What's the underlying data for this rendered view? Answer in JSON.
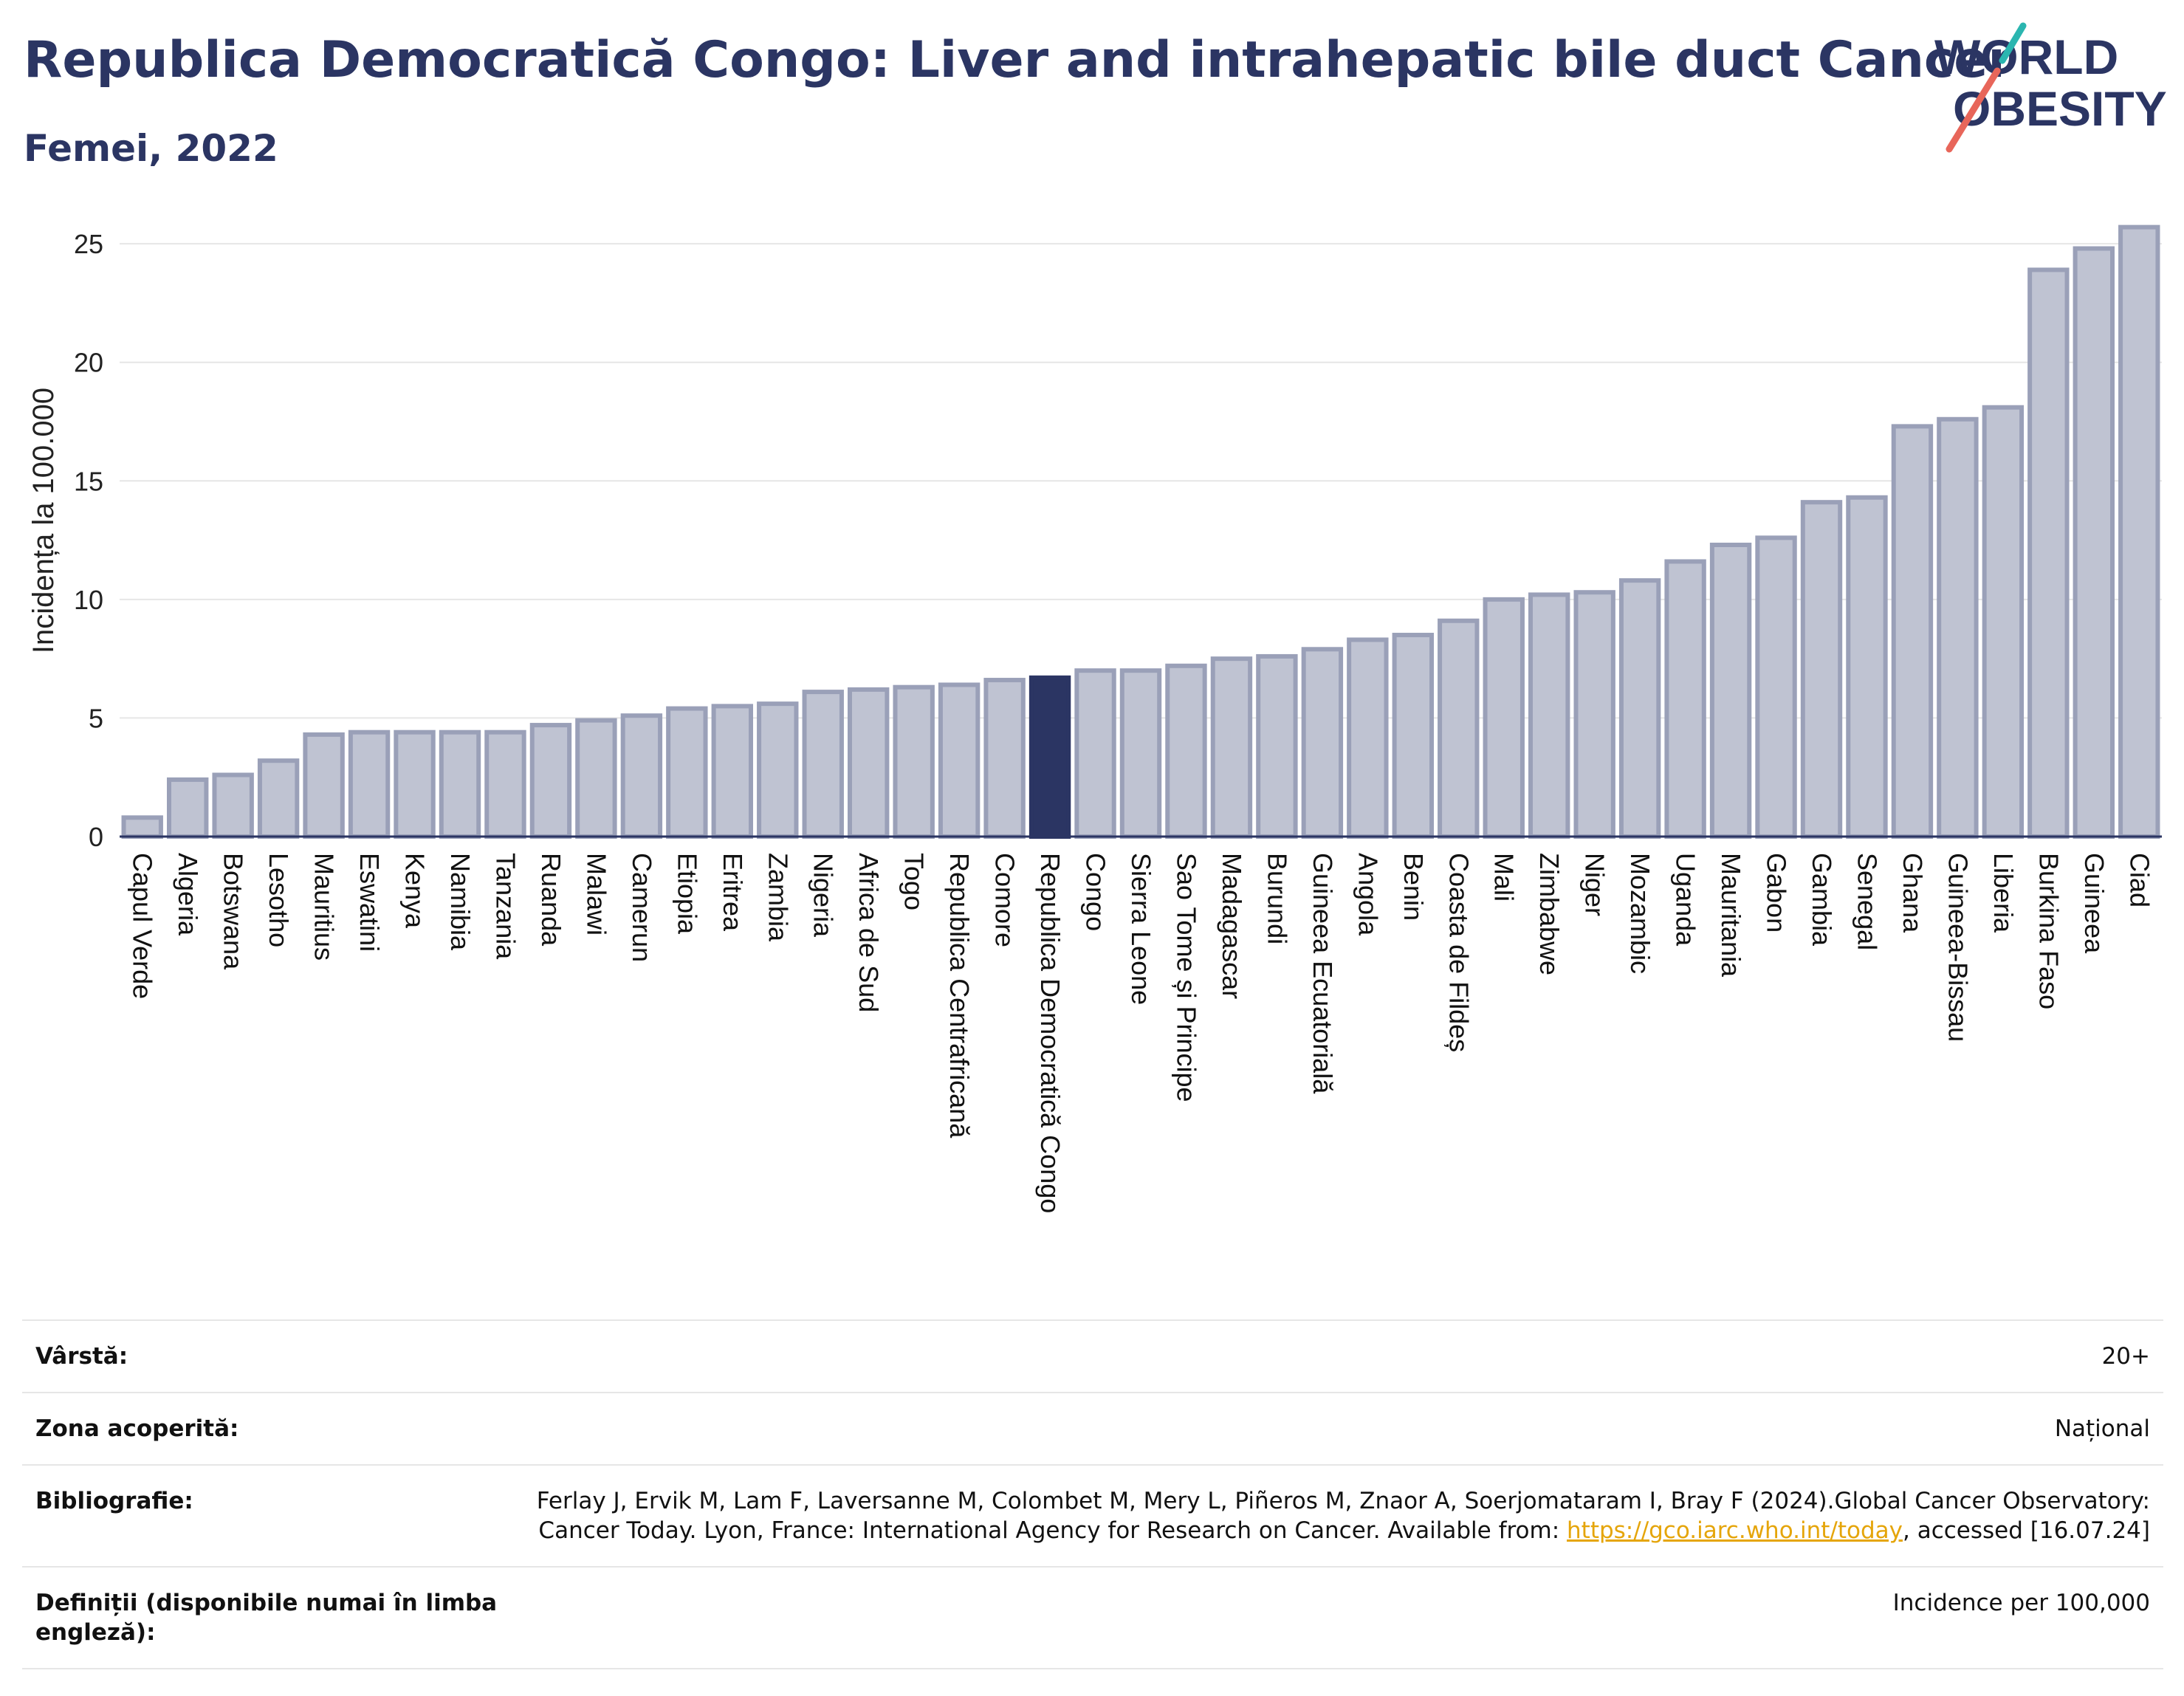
{
  "header": {
    "title": "Republica Democratică Congo: Liver and intrahepatic bile duct Cancer",
    "subtitle": "Femei, 2022",
    "logo_line1": "WORLD",
    "logo_line2": "OBESITY"
  },
  "colors": {
    "bar": "#bfc3d2",
    "bar_border": "#9aa0b8",
    "highlight": "#2b3563",
    "title": "#2b3563",
    "link": "#e5a50a",
    "logo_teal": "#2bb6b0",
    "logo_red": "#e8665a"
  },
  "chart_data": {
    "type": "bar",
    "ylabel": "Incidența la 100.000",
    "xlabel": "",
    "ylim": [
      0,
      26
    ],
    "yticks": [
      0,
      5,
      10,
      15,
      20,
      25
    ],
    "grid": true,
    "highlight_category": "Republica Democratică Congo",
    "categories": [
      "Capul Verde",
      "Algeria",
      "Botswana",
      "Lesotho",
      "Mauritius",
      "Eswatini",
      "Kenya",
      "Namibia",
      "Tanzania",
      "Ruanda",
      "Malawi",
      "Camerun",
      "Etiopia",
      "Eritrea",
      "Zambia",
      "Nigeria",
      "Africa de Sud",
      "Togo",
      "Republica Centrafricană",
      "Comore",
      "Republica Democratică Congo",
      "Congo",
      "Sierra Leone",
      "Sao Tome și Principe",
      "Madagascar",
      "Burundi",
      "Guineea Ecuatorială",
      "Angola",
      "Benin",
      "Coasta de Fildeș",
      "Mali",
      "Zimbabwe",
      "Niger",
      "Mozambic",
      "Uganda",
      "Mauritania",
      "Gabon",
      "Gambia",
      "Senegal",
      "Ghana",
      "Guineea-Bissau",
      "Liberia",
      "Burkina Faso",
      "Guineea",
      "Ciad"
    ],
    "values": [
      0.8,
      2.4,
      2.6,
      3.2,
      4.3,
      4.4,
      4.4,
      4.4,
      4.4,
      4.7,
      4.9,
      5.1,
      5.4,
      5.5,
      5.6,
      6.1,
      6.2,
      6.3,
      6.4,
      6.6,
      6.7,
      7.0,
      7.0,
      7.2,
      7.5,
      7.6,
      7.9,
      8.3,
      8.5,
      9.1,
      10.0,
      10.2,
      10.3,
      10.8,
      11.6,
      12.3,
      12.6,
      14.1,
      14.3,
      17.3,
      17.6,
      18.1,
      23.9,
      24.8,
      25.7
    ]
  },
  "meta": {
    "age_label": "Vârstă:",
    "age_value": "20+",
    "area_label": "Zona acoperită:",
    "area_value": "Național",
    "biblio_label": "Bibliografie:",
    "biblio_text1": "Ferlay J, Ervik M, Lam F, Laversanne M, Colombet M, Mery L, Piñeros M, Znaor A, Soerjomataram I, Bray F (2024).Global Cancer Observatory: Cancer Today. Lyon, France: International Agency for Research on Cancer. Available from: ",
    "biblio_link": "https://gco.iarc.who.int/today",
    "biblio_text2": ", accessed [16.07.24]",
    "def_label": "Definiții (disponibile numai în limba engleză):",
    "def_value": "Incidence per 100,000"
  }
}
